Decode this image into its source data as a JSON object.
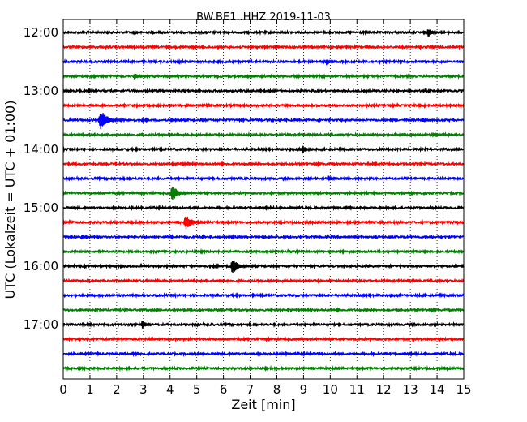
{
  "chart_data": {
    "type": "line",
    "subtype": "seismic-dayplot",
    "title": "BW.BE1..HHZ 2019-11-03",
    "xlabel": "Zeit  [min]",
    "ylabel": "UTC (Lokalzeit = UTC + 01:00)",
    "xlim": [
      0,
      15
    ],
    "x_ticks": [
      "0",
      "1",
      "2",
      "3",
      "4",
      "5",
      "6",
      "7",
      "8",
      "9",
      "10",
      "11",
      "12",
      "13",
      "14",
      "15"
    ],
    "y_ticks": [
      "12:00",
      "13:00",
      "14:00",
      "15:00",
      "16:00",
      "17:00"
    ],
    "grid": "vertical dotted",
    "trace_colors": [
      "#000000",
      "#ff0000",
      "#0000ff",
      "#008000"
    ],
    "traces": [
      {
        "time": "12:00",
        "events": [
          {
            "min": 13.7,
            "amp": 0.6
          }
        ]
      },
      {
        "time": "12:15",
        "events": [
          {
            "min": 11.4,
            "amp": 0.25
          }
        ]
      },
      {
        "time": "12:30",
        "events": [
          {
            "min": 9.9,
            "amp": 0.45
          }
        ]
      },
      {
        "time": "12:45",
        "events": [
          {
            "min": 2.7,
            "amp": 0.45
          },
          {
            "min": 6.9,
            "amp": 0.25
          },
          {
            "min": 8.7,
            "amp": 0.15
          }
        ]
      },
      {
        "time": "13:00",
        "events": []
      },
      {
        "time": "13:15",
        "events": [
          {
            "min": 5.2,
            "amp": 0.1
          }
        ]
      },
      {
        "time": "13:30",
        "events": [
          {
            "min": 1.4,
            "amp": 1.3
          },
          {
            "min": 4.1,
            "amp": 0.35
          },
          {
            "min": 13.5,
            "amp": 0.3
          }
        ]
      },
      {
        "time": "13:45",
        "events": [
          {
            "min": 13.9,
            "amp": 0.3
          }
        ]
      },
      {
        "time": "14:00",
        "events": [
          {
            "min": 9.0,
            "amp": 0.55
          }
        ]
      },
      {
        "time": "14:15",
        "events": [
          {
            "min": 4.6,
            "amp": 0.15
          }
        ]
      },
      {
        "time": "14:30",
        "events": [
          {
            "min": 10.0,
            "amp": 0.4
          }
        ]
      },
      {
        "time": "14:45",
        "events": [
          {
            "min": 4.1,
            "amp": 1.0
          }
        ]
      },
      {
        "time": "15:00",
        "events": []
      },
      {
        "time": "15:15",
        "events": [
          {
            "min": 4.6,
            "amp": 1.0
          }
        ]
      },
      {
        "time": "15:30",
        "events": [
          {
            "min": 0.75,
            "amp": 0.35
          }
        ]
      },
      {
        "time": "15:45",
        "events": [
          {
            "min": 8.8,
            "amp": 0.15
          }
        ]
      },
      {
        "time": "16:00",
        "events": [
          {
            "min": 6.35,
            "amp": 1.0
          }
        ]
      },
      {
        "time": "16:15",
        "events": [
          {
            "min": 5.9,
            "amp": 0.2
          }
        ]
      },
      {
        "time": "16:30",
        "events": []
      },
      {
        "time": "16:45",
        "events": []
      },
      {
        "time": "17:00",
        "events": [
          {
            "min": 3.0,
            "amp": 0.5
          }
        ]
      },
      {
        "time": "17:15",
        "events": []
      },
      {
        "time": "17:30",
        "events": [
          {
            "min": 8.5,
            "amp": 0.1
          }
        ]
      },
      {
        "time": "17:45",
        "events": []
      }
    ]
  }
}
